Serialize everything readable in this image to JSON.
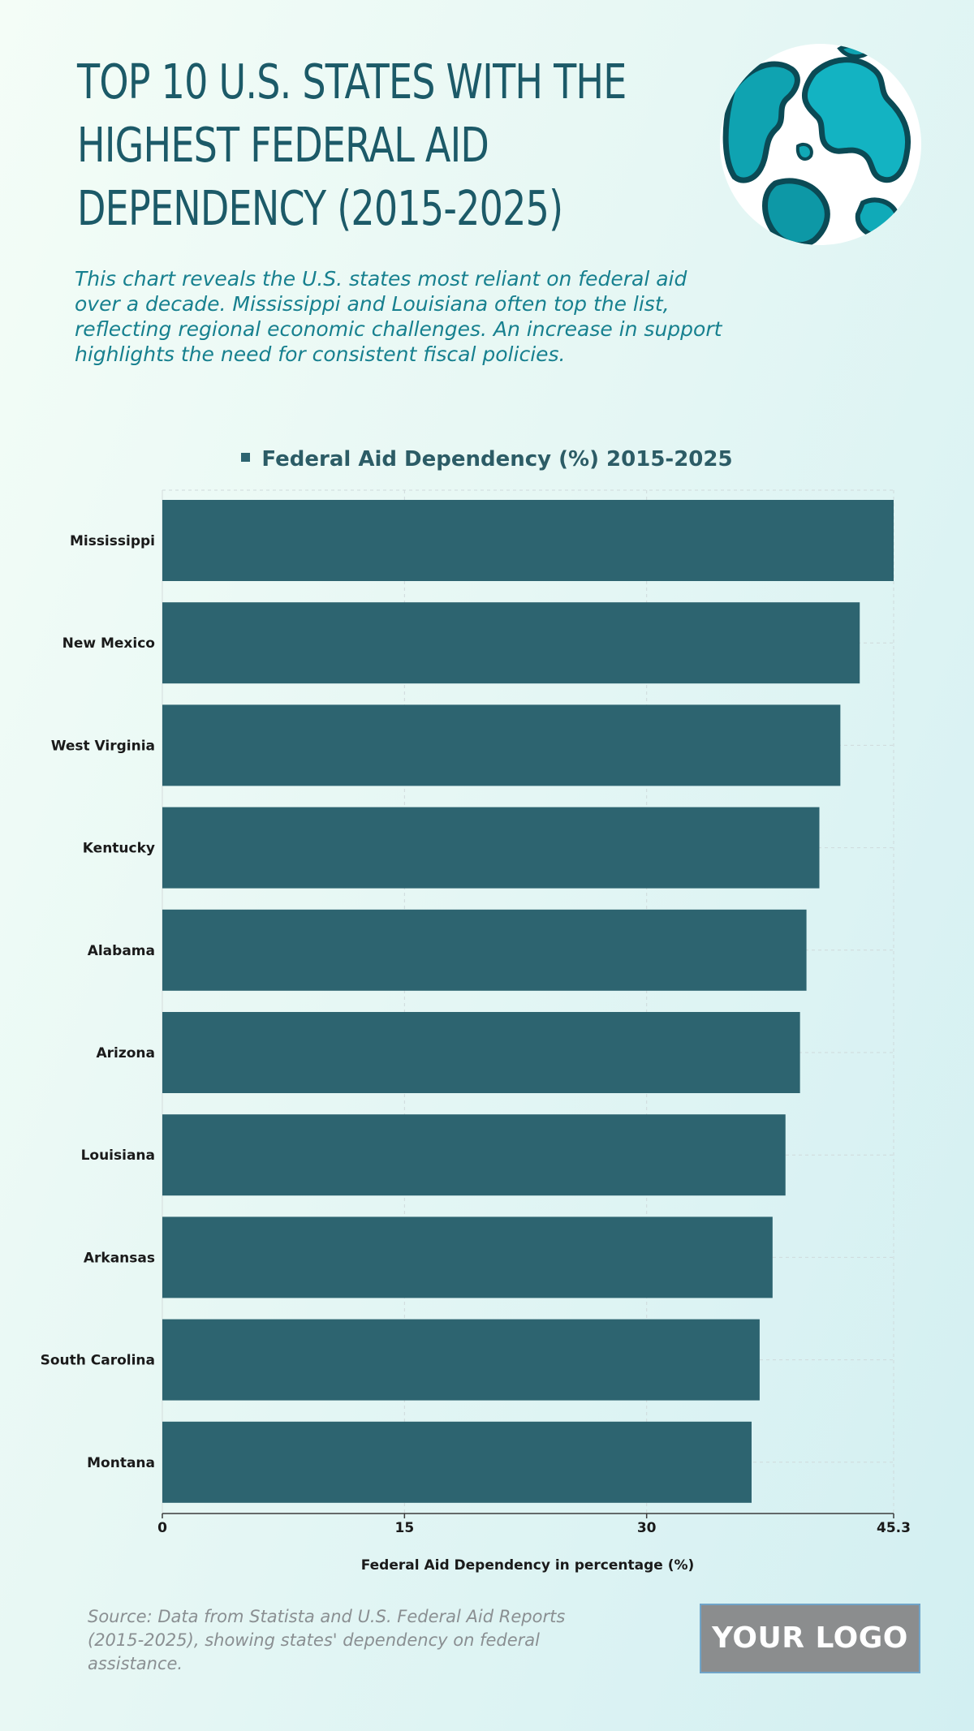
{
  "header": {
    "title": "TOP 10 U.S. STATES WITH THE HIGHEST FEDERAL AID DEPENDENCY (2015-2025)",
    "subtitle": "This chart reveals the U.S. states most reliant on federal aid over a decade. Mississippi and Louisiana often top the list, reflecting regional economic challenges. An increase in support highlights the need for consistent fiscal policies.",
    "globe_icon": "globe-icon"
  },
  "colors": {
    "bar": "#2d6470",
    "title": "#1c5a68",
    "subtitle": "#17808f"
  },
  "chart_data": {
    "type": "bar",
    "orientation": "horizontal",
    "categories": [
      "Mississippi",
      "New Mexico",
      "West Virginia",
      "Kentucky",
      "Alabama",
      "Arizona",
      "Louisiana",
      "Arkansas",
      "South Carolina",
      "Montana"
    ],
    "series": [
      {
        "name": "Federal Aid Dependency (%) 2015-2025",
        "values": [
          45.3,
          43.2,
          42.0,
          40.7,
          39.9,
          39.5,
          38.6,
          37.8,
          37.0,
          36.5
        ]
      }
    ],
    "xlabel": "Federal Aid Dependency in percentage (%)",
    "ylabel": "",
    "xlim": [
      0,
      45.3
    ],
    "xticks": [
      0,
      15,
      30,
      45.3
    ],
    "xtick_labels": [
      "0",
      "15",
      "30",
      "45.3"
    ],
    "grid": true,
    "legend_position": "top-center"
  },
  "footer": {
    "source": "Source: Data from Statista and U.S. Federal Aid Reports (2015-2025), showing states' dependency on federal assistance.",
    "logo_text": "YOUR LOGO"
  }
}
